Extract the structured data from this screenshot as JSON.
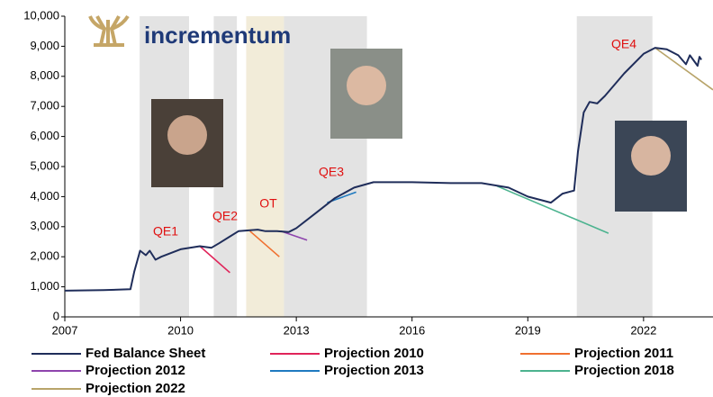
{
  "chart_data": {
    "type": "line",
    "logo": "incrementum",
    "xlim": [
      2007,
      2023.8
    ],
    "xticks": [
      2007,
      2010,
      2013,
      2016,
      2019,
      2022
    ],
    "ylim": [
      0,
      10000
    ],
    "yticks": [
      0,
      {
        "value": 1000,
        "label": "1,000"
      },
      {
        "value": 2000,
        "label": "2,000"
      },
      {
        "value": 3000,
        "label": "3,000"
      },
      {
        "value": 4000,
        "label": "4,000"
      },
      {
        "value": 5000,
        "label": "5,000"
      },
      {
        "value": 6000,
        "label": "6,000"
      },
      {
        "value": 7000,
        "label": "7,000"
      },
      {
        "value": 8000,
        "label": "8,000"
      },
      {
        "value": 9000,
        "label": "9,000"
      },
      {
        "value": 10000,
        "label": "10,000"
      }
    ],
    "shaded_periods": [
      {
        "from": 2008.94,
        "to": 2010.22,
        "color": "#e3e3e3"
      },
      {
        "from": 2010.86,
        "to": 2011.46,
        "color": "#e3e3e3"
      },
      {
        "from": 2011.7,
        "to": 2012.68,
        "color": "#f2ecd9"
      },
      {
        "from": 2012.68,
        "to": 2014.83,
        "color": "#e3e3e3"
      },
      {
        "from": 2020.27,
        "to": 2022.23,
        "color": "#e3e3e3"
      }
    ],
    "annotations": [
      "QE1",
      "QE2",
      "OT",
      "QE3",
      "QE4"
    ],
    "series": [
      {
        "name": "Fed Balance Sheet",
        "color": "#1f2d5a",
        "x": [
          2007.0,
          2008.0,
          2008.7,
          2008.8,
          2008.95,
          2009.1,
          2009.2,
          2009.35,
          2009.5,
          2010.0,
          2010.5,
          2010.8,
          2011.0,
          2011.5,
          2012.0,
          2012.2,
          2012.5,
          2012.8,
          2013.0,
          2013.5,
          2014.0,
          2014.5,
          2015.0,
          2016.0,
          2017.0,
          2017.8,
          2018.5,
          2019.0,
          2019.6,
          2019.9,
          2020.2,
          2020.3,
          2020.45,
          2020.6,
          2020.8,
          2021.0,
          2021.5,
          2022.0,
          2022.3,
          2022.6,
          2022.9,
          2023.1,
          2023.2,
          2023.4,
          2023.45,
          2023.5
        ],
        "values": [
          870,
          890,
          920,
          1500,
          2200,
          2050,
          2200,
          1900,
          2000,
          2250,
          2350,
          2300,
          2450,
          2850,
          2900,
          2850,
          2850,
          2820,
          2950,
          3450,
          3950,
          4300,
          4480,
          4480,
          4450,
          4450,
          4300,
          4000,
          3800,
          4100,
          4200,
          5500,
          6800,
          7150,
          7100,
          7350,
          8100,
          8750,
          8950,
          8900,
          8700,
          8400,
          8700,
          8350,
          8650,
          8550
        ]
      },
      {
        "name": "Projection 2010",
        "color": "#e0245a",
        "x": [
          2010.5,
          2011.28
        ],
        "values": [
          2350,
          1470
        ]
      },
      {
        "name": "Projection 2011",
        "color": "#f07030",
        "x": [
          2011.8,
          2012.56
        ],
        "values": [
          2850,
          2000
        ]
      },
      {
        "name": "Projection 2012",
        "color": "#8e44ad",
        "x": [
          2012.6,
          2013.28
        ],
        "values": [
          2850,
          2550
        ]
      },
      {
        "name": "Projection 2013",
        "color": "#1f7ac0",
        "x": [
          2013.8,
          2014.55
        ],
        "values": [
          3800,
          4150
        ]
      },
      {
        "name": "Projection 2018",
        "color": "#4cb38f",
        "x": [
          2018.2,
          2021.09
        ],
        "values": [
          4350,
          2780
        ]
      },
      {
        "name": "Projection 2022",
        "color": "#b8a46a",
        "x": [
          2022.3,
          2023.8
        ],
        "values": [
          8950,
          7550
        ]
      }
    ]
  }
}
